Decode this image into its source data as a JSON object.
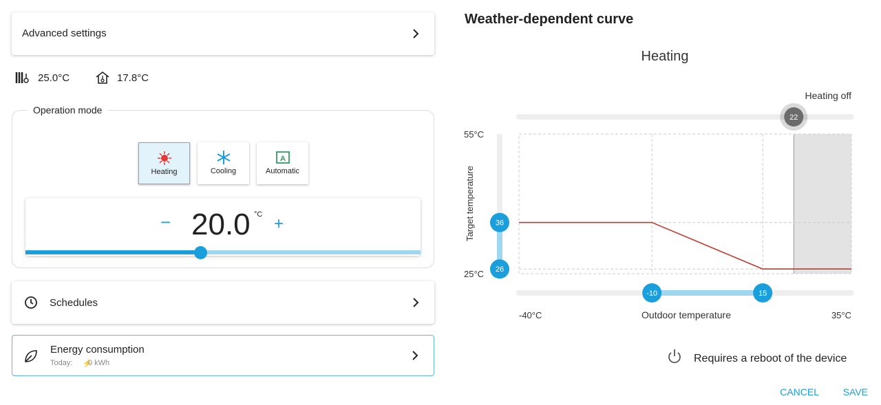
{
  "left": {
    "advanced_settings": "Advanced settings",
    "status": {
      "flow_temp": "25.0°C",
      "room_temp": "17.8°C"
    },
    "operation_mode": {
      "title": "Operation mode",
      "modes": [
        "Heating",
        "Cooling",
        "Automatic"
      ],
      "selected": 0,
      "minus": "−",
      "setpoint": "20.0",
      "unit": "°C",
      "plus": "+"
    },
    "schedules": "Schedules",
    "energy": {
      "title": "Energy consumption",
      "today_label": "Today:",
      "today_value": "0 kWh"
    }
  },
  "curve": {
    "title": "Weather-dependent curve",
    "subtitle": "Heating",
    "heating_off_label": "Heating off",
    "heating_off": 22,
    "y_axis_label": "Target temperature",
    "x_axis_label": "Outdoor temperature",
    "xlim": [
      -40,
      35
    ],
    "ylim": [
      25,
      55
    ],
    "xticks": [
      {
        "value": -40,
        "label": "-40°C"
      },
      {
        "value": 35,
        "label": "35°C"
      }
    ],
    "yticks": [
      {
        "value": 25,
        "label": "25°C"
      },
      {
        "value": 55,
        "label": "55°C"
      }
    ],
    "min_target": 26,
    "max_target": 36,
    "x_low": -10,
    "x_high": 15,
    "line_color": "#c0392b",
    "handle_color": "#1a9fdc"
  },
  "footer": {
    "reboot_note": "Requires a reboot of the device",
    "cancel": "CANCEL",
    "save": "SAVE"
  }
}
